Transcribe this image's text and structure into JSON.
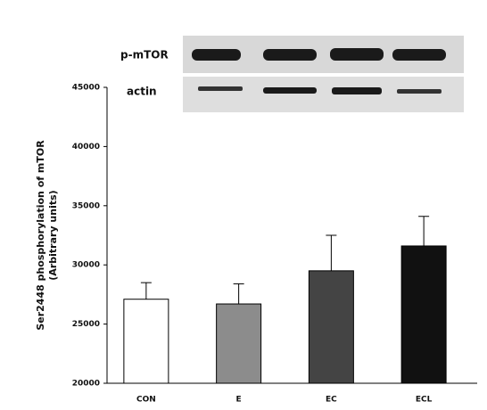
{
  "chart_data": {
    "type": "bar",
    "categories": [
      "CON",
      "E",
      "EC",
      "ECL"
    ],
    "values": [
      27100,
      26700,
      29500,
      31600
    ],
    "errors": [
      1400,
      1700,
      3000,
      2500
    ],
    "colors": [
      "#ffffff",
      "#8c8c8c",
      "#444444",
      "#111111"
    ],
    "ylim": [
      20000,
      45000
    ],
    "yticks": [
      20000,
      25000,
      30000,
      35000,
      40000,
      45000
    ],
    "y_label": [
      "Ser2448 phosphorylation of mTOR",
      "(Arbitrary units)"
    ],
    "blot_labels": [
      "p-mTOR",
      "actin"
    ]
  }
}
